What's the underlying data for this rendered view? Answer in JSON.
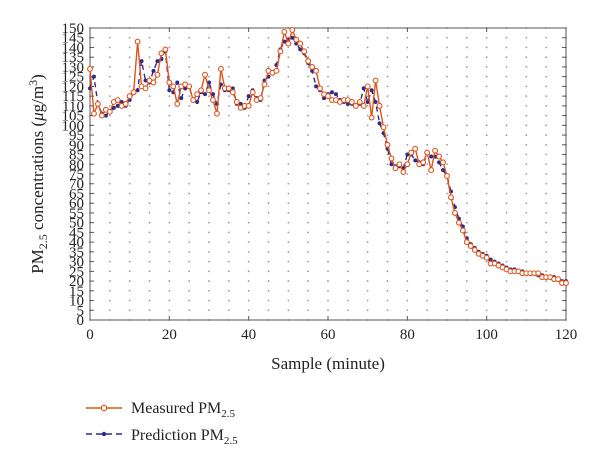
{
  "chart_data": {
    "type": "line",
    "xlabel": "Sample (minute)",
    "ylabel": "PM2.5 concentrations (μg/m3)",
    "ylabel_parts": {
      "pm": "PM",
      "sub": "2.5",
      "text": " concentrations (",
      "mu": "μ",
      "unit": "g/m",
      "sup": "3",
      "close": ")"
    },
    "xlim": [
      0,
      120
    ],
    "ylim": [
      0,
      150
    ],
    "xticks": [
      0,
      20,
      40,
      60,
      80,
      100,
      120
    ],
    "yticks": [
      0,
      5,
      10,
      15,
      20,
      25,
      30,
      35,
      40,
      45,
      50,
      55,
      60,
      65,
      70,
      75,
      80,
      85,
      90,
      95,
      100,
      105,
      110,
      115,
      120,
      125,
      130,
      135,
      140,
      145,
      150
    ],
    "grid": true,
    "legend_position": "bottom-left",
    "series": [
      {
        "name": "Measured PM2.5",
        "legend_base": "Measured PM",
        "legend_sub": "2.5",
        "color": "#E0541B",
        "marker": "circle",
        "line_style": "solid",
        "values": [
          129,
          106,
          111,
          105,
          108,
          107,
          112,
          113,
          110,
          111,
          115,
          117,
          143,
          120,
          119,
          123,
          122,
          126,
          137,
          139,
          122,
          120,
          111,
          120,
          121,
          120,
          113,
          116,
          118,
          126,
          118,
          113,
          106,
          129,
          119,
          119,
          117,
          112,
          109,
          110,
          110,
          117,
          113,
          114,
          121,
          128,
          127,
          128,
          138,
          148,
          142,
          149,
          144,
          142,
          138,
          133,
          130,
          128,
          119,
          116,
          115,
          113,
          113,
          112,
          113,
          113,
          112,
          110,
          112,
          110,
          120,
          104,
          123,
          110,
          99,
          90,
          83,
          78,
          80,
          76,
          80,
          86,
          88,
          80,
          81,
          86,
          77,
          87,
          84,
          81,
          74,
          63,
          55,
          50,
          46,
          40,
          38,
          36,
          34,
          33,
          32,
          29,
          29,
          28,
          27,
          26,
          25,
          25,
          25,
          24,
          24,
          24,
          24,
          24,
          22,
          22,
          22,
          21,
          21,
          19,
          19
        ]
      },
      {
        "name": "Prediction PM2.5",
        "legend_base": "Prediction PM",
        "legend_sub": "2.5",
        "color": "#2B2B8C",
        "marker": "dot",
        "line_style": "dashed",
        "values": [
          119,
          125,
          111,
          106,
          105,
          107,
          109,
          110,
          112,
          110,
          113,
          117,
          118,
          133,
          123,
          122,
          128,
          133,
          134,
          138,
          118,
          117,
          122,
          114,
          119,
          120,
          113,
          112,
          117,
          116,
          122,
          116,
          111,
          121,
          118,
          118,
          119,
          111,
          111,
          109,
          115,
          118,
          114,
          113,
          123,
          125,
          127,
          131,
          139,
          143,
          144,
          145,
          142,
          139,
          137,
          132,
          128,
          120,
          118,
          114,
          116,
          117,
          116,
          113,
          112,
          111,
          111,
          110,
          111,
          119,
          112,
          118,
          112,
          101,
          96,
          88,
          80,
          79,
          79,
          78,
          85,
          85,
          82,
          81,
          80,
          86,
          84,
          84,
          81,
          77,
          74,
          66,
          58,
          52,
          48,
          42,
          39,
          37,
          35,
          34,
          33,
          31,
          30,
          29,
          28,
          27,
          26,
          26,
          25,
          25,
          24,
          24,
          24,
          23,
          23,
          22,
          22,
          22,
          21,
          20,
          20
        ]
      }
    ]
  }
}
